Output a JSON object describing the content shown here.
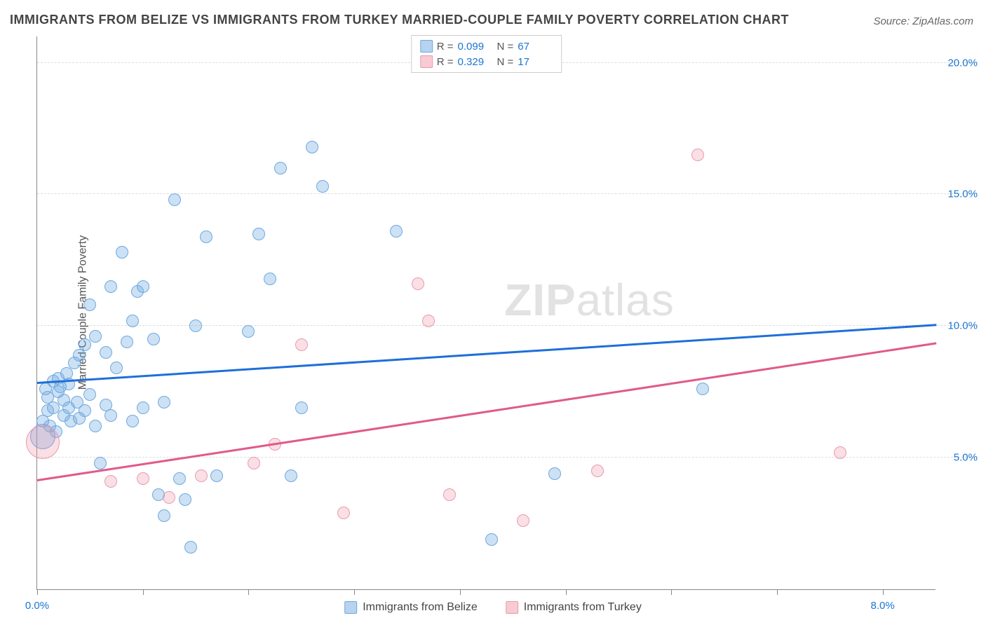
{
  "title": "IMMIGRANTS FROM BELIZE VS IMMIGRANTS FROM TURKEY MARRIED-COUPLE FAMILY POVERTY CORRELATION CHART",
  "source": "Source: ZipAtlas.com",
  "y_axis_label": "Married-Couple Family Poverty",
  "watermark": {
    "bold": "ZIP",
    "rest": "atlas"
  },
  "chart": {
    "type": "scatter",
    "xlim": [
      0,
      8.5
    ],
    "ylim": [
      0,
      21
    ],
    "x_ticks": [
      0,
      1,
      2,
      3,
      4,
      5,
      6,
      7,
      8
    ],
    "x_tick_labels": {
      "0": "0.0%",
      "8": "8.0%"
    },
    "y_grid": [
      5,
      10,
      15,
      20
    ],
    "y_tick_labels": {
      "5": "5.0%",
      "10": "10.0%",
      "15": "15.0%",
      "20": "20.0%"
    },
    "grid_color": "#dddddd",
    "axis_color": "#888888",
    "background_color": "#ffffff",
    "point_radius": 9,
    "series": [
      {
        "name": "Immigrants from Belize",
        "color_fill": "rgba(110,168,224,0.35)",
        "color_stroke": "#6ea8e0",
        "trend_color": "#1e6fd9",
        "r": "0.099",
        "n": "67",
        "trend": {
          "x0": 0,
          "y0": 7.9,
          "x1": 8.5,
          "y1": 10.1
        },
        "points": [
          {
            "x": 0.05,
            "y": 5.8,
            "r": 18
          },
          {
            "x": 0.05,
            "y": 6.4
          },
          {
            "x": 0.08,
            "y": 7.6
          },
          {
            "x": 0.1,
            "y": 6.8
          },
          {
            "x": 0.1,
            "y": 7.3
          },
          {
            "x": 0.12,
            "y": 6.2
          },
          {
            "x": 0.15,
            "y": 7.9
          },
          {
            "x": 0.15,
            "y": 6.9
          },
          {
            "x": 0.18,
            "y": 6.0
          },
          {
            "x": 0.2,
            "y": 7.5
          },
          {
            "x": 0.2,
            "y": 8.0
          },
          {
            "x": 0.22,
            "y": 7.7
          },
          {
            "x": 0.25,
            "y": 6.6
          },
          {
            "x": 0.25,
            "y": 7.2
          },
          {
            "x": 0.28,
            "y": 8.2
          },
          {
            "x": 0.3,
            "y": 6.9
          },
          {
            "x": 0.3,
            "y": 7.8
          },
          {
            "x": 0.32,
            "y": 6.4
          },
          {
            "x": 0.35,
            "y": 8.6
          },
          {
            "x": 0.38,
            "y": 7.1
          },
          {
            "x": 0.4,
            "y": 6.5
          },
          {
            "x": 0.4,
            "y": 8.9
          },
          {
            "x": 0.45,
            "y": 6.8
          },
          {
            "x": 0.45,
            "y": 9.3
          },
          {
            "x": 0.5,
            "y": 7.4
          },
          {
            "x": 0.5,
            "y": 10.8
          },
          {
            "x": 0.55,
            "y": 6.2
          },
          {
            "x": 0.55,
            "y": 9.6
          },
          {
            "x": 0.6,
            "y": 4.8
          },
          {
            "x": 0.65,
            "y": 7.0
          },
          {
            "x": 0.65,
            "y": 9.0
          },
          {
            "x": 0.7,
            "y": 11.5
          },
          {
            "x": 0.7,
            "y": 6.6
          },
          {
            "x": 0.75,
            "y": 8.4
          },
          {
            "x": 0.8,
            "y": 12.8
          },
          {
            "x": 0.85,
            "y": 9.4
          },
          {
            "x": 0.9,
            "y": 6.4
          },
          {
            "x": 0.9,
            "y": 10.2
          },
          {
            "x": 0.95,
            "y": 11.3
          },
          {
            "x": 1.0,
            "y": 11.5
          },
          {
            "x": 1.0,
            "y": 6.9
          },
          {
            "x": 1.1,
            "y": 9.5
          },
          {
            "x": 1.15,
            "y": 3.6
          },
          {
            "x": 1.2,
            "y": 7.1
          },
          {
            "x": 1.2,
            "y": 2.8
          },
          {
            "x": 1.3,
            "y": 14.8
          },
          {
            "x": 1.35,
            "y": 4.2
          },
          {
            "x": 1.4,
            "y": 3.4
          },
          {
            "x": 1.45,
            "y": 1.6
          },
          {
            "x": 1.5,
            "y": 10.0
          },
          {
            "x": 1.6,
            "y": 13.4
          },
          {
            "x": 1.7,
            "y": 4.3
          },
          {
            "x": 2.0,
            "y": 9.8
          },
          {
            "x": 2.1,
            "y": 13.5
          },
          {
            "x": 2.2,
            "y": 11.8
          },
          {
            "x": 2.3,
            "y": 16.0
          },
          {
            "x": 2.4,
            "y": 4.3
          },
          {
            "x": 2.5,
            "y": 6.9
          },
          {
            "x": 2.6,
            "y": 16.8
          },
          {
            "x": 2.7,
            "y": 15.3
          },
          {
            "x": 3.4,
            "y": 13.6
          },
          {
            "x": 4.3,
            "y": 1.9
          },
          {
            "x": 4.9,
            "y": 4.4
          },
          {
            "x": 6.3,
            "y": 7.6
          }
        ]
      },
      {
        "name": "Immigrants from Turkey",
        "color_fill": "rgba(240,150,170,0.3)",
        "color_stroke": "#e89bb0",
        "trend_color": "#e05a8a",
        "r": "0.329",
        "n": "17",
        "trend": {
          "x0": 0,
          "y0": 4.2,
          "x1": 8.5,
          "y1": 9.4
        },
        "points": [
          {
            "x": 0.05,
            "y": 5.6,
            "r": 24
          },
          {
            "x": 0.7,
            "y": 4.1
          },
          {
            "x": 1.0,
            "y": 4.2
          },
          {
            "x": 1.25,
            "y": 3.5
          },
          {
            "x": 1.55,
            "y": 4.3
          },
          {
            "x": 2.05,
            "y": 4.8
          },
          {
            "x": 2.25,
            "y": 5.5
          },
          {
            "x": 2.5,
            "y": 9.3
          },
          {
            "x": 2.9,
            "y": 2.9
          },
          {
            "x": 3.6,
            "y": 11.6
          },
          {
            "x": 3.7,
            "y": 10.2
          },
          {
            "x": 3.9,
            "y": 3.6
          },
          {
            "x": 4.6,
            "y": 2.6
          },
          {
            "x": 5.3,
            "y": 4.5
          },
          {
            "x": 6.25,
            "y": 16.5
          },
          {
            "x": 7.6,
            "y": 5.2
          }
        ]
      }
    ]
  },
  "legend_top": {
    "r_label": "R =",
    "n_label": "N ="
  },
  "legend_bottom": [
    {
      "label": "Immigrants from Belize",
      "class": "blue"
    },
    {
      "label": "Immigrants from Turkey",
      "class": "pink"
    }
  ]
}
